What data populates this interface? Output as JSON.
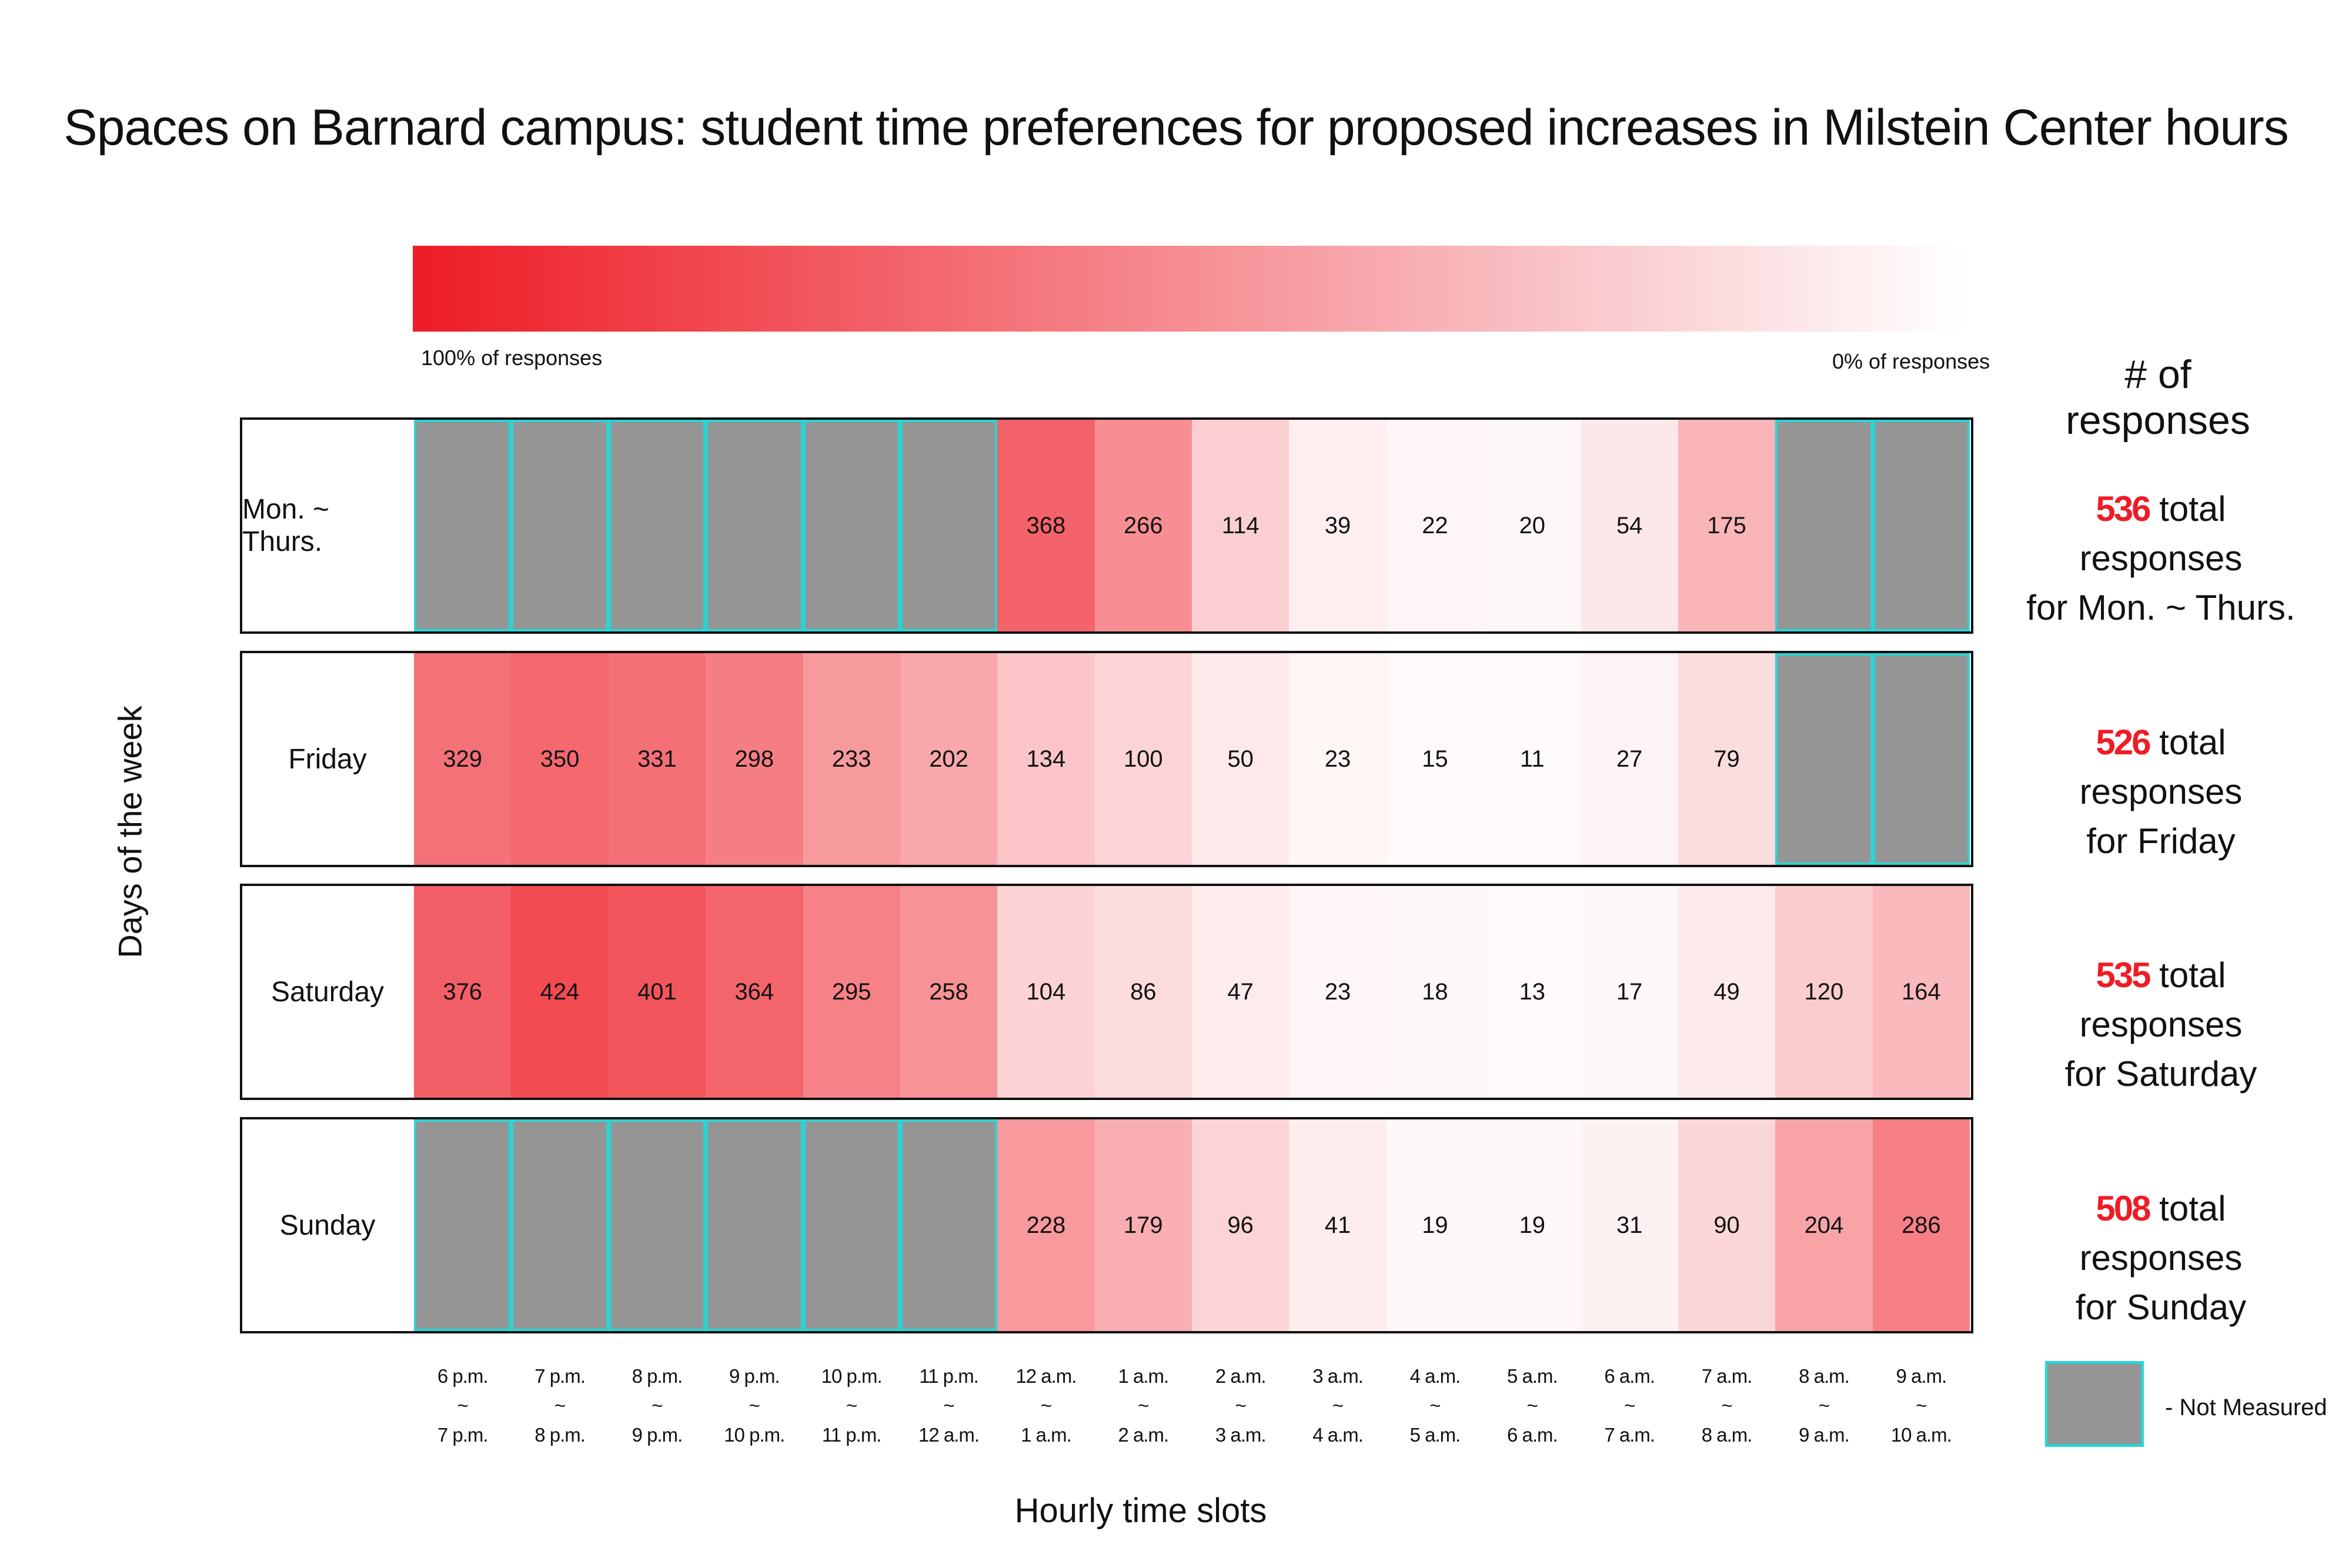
{
  "chart_data": {
    "type": "heatmap",
    "title": "Spaces on Barnard campus: student time preferences for proposed increases in Milstein Center hours",
    "xlabel": "Hourly time slots",
    "ylabel": "Days of the week",
    "color_scale": {
      "max_label": "100% of responses",
      "min_label": "0% of responses",
      "max_color": "#ee1c25",
      "min_color": "#ffffff"
    },
    "x": [
      {
        "start": "6 p.m.",
        "sep": "~",
        "end": "7 p.m."
      },
      {
        "start": "7 p.m.",
        "sep": "~",
        "end": "8 p.m."
      },
      {
        "start": "8 p.m.",
        "sep": "~",
        "end": "9 p.m."
      },
      {
        "start": "9 p.m.",
        "sep": "~",
        "end": "10 p.m."
      },
      {
        "start": "10 p.m.",
        "sep": "~",
        "end": "11 p.m."
      },
      {
        "start": "11 p.m.",
        "sep": "~",
        "end": "12 a.m."
      },
      {
        "start": "12 a.m.",
        "sep": "~",
        "end": "1 a.m."
      },
      {
        "start": "1 a.m.",
        "sep": "~",
        "end": "2 a.m."
      },
      {
        "start": "2 a.m.",
        "sep": "~",
        "end": "3 a.m."
      },
      {
        "start": "3 a.m.",
        "sep": "~",
        "end": "4 a.m."
      },
      {
        "start": "4 a.m.",
        "sep": "~",
        "end": "5 a.m."
      },
      {
        "start": "5 a.m.",
        "sep": "~",
        "end": "6 a.m."
      },
      {
        "start": "6 a.m.",
        "sep": "~",
        "end": "7 a.m."
      },
      {
        "start": "7 a.m.",
        "sep": "~",
        "end": "8 a.m."
      },
      {
        "start": "8 a.m.",
        "sep": "~",
        "end": "9 a.m."
      },
      {
        "start": "9  a.m.",
        "sep": "~",
        "end": "10 a.m."
      }
    ],
    "rows": [
      {
        "day": "Mon. ~ Thurs.",
        "total": "536",
        "total_text": "total responses",
        "total_for": "for Mon. ~ Thurs.",
        "values": [
          null,
          null,
          null,
          null,
          null,
          null,
          368,
          266,
          114,
          39,
          22,
          20,
          54,
          175,
          null,
          null
        ]
      },
      {
        "day": "Friday",
        "total": "526",
        "total_text": "total responses",
        "total_for": "for Friday",
        "values": [
          329,
          350,
          331,
          298,
          233,
          202,
          134,
          100,
          50,
          23,
          15,
          11,
          27,
          79,
          null,
          null
        ]
      },
      {
        "day": "Saturday",
        "total": "535",
        "total_text": "total responses",
        "total_for": "for Saturday",
        "values": [
          376,
          424,
          401,
          364,
          295,
          258,
          104,
          86,
          47,
          23,
          18,
          13,
          17,
          49,
          120,
          164
        ]
      },
      {
        "day": "Sunday",
        "total": "508",
        "total_text": "total responses",
        "total_for": "for Sunday",
        "values": [
          null,
          null,
          null,
          null,
          null,
          null,
          228,
          179,
          96,
          41,
          19,
          19,
          31,
          90,
          204,
          286
        ]
      }
    ],
    "responses_header": "# of responses",
    "not_measured_label": "- Not Measured",
    "not_measured_color": "#959595",
    "not_measured_border": "#2ad4d4"
  }
}
